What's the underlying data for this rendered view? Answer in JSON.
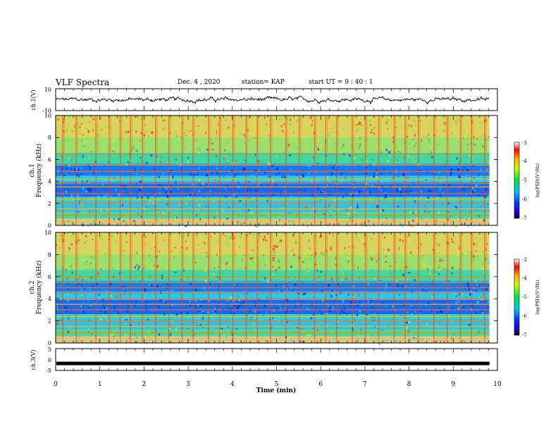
{
  "header": {
    "title": "VLF Spectra",
    "date": "Dec. 4 , 2020",
    "station": "station= KAP",
    "start_ut": "start UT = 9 : 40 : 1"
  },
  "chart_data": [
    {
      "type": "line",
      "panel": "ch1-waveform",
      "ylabel": "ch.1(V)",
      "ylim": [
        -10,
        10
      ],
      "yticks": [
        "10",
        "-10"
      ],
      "xlim": [
        0,
        10
      ],
      "x_extent_max": 9.82,
      "color": "#000000",
      "description_values": {
        "typical_range": [
          -3,
          3
        ]
      }
    },
    {
      "type": "heatmap",
      "panel": "ch1-spectrogram",
      "ylabel": "ch.1",
      "ylabel2": "Frequency (kHz)",
      "ylim": [
        0,
        10
      ],
      "yticks": [
        "0",
        "2",
        "4",
        "6",
        "8",
        "10"
      ],
      "xlim": [
        0,
        10
      ],
      "x_extent_max": 9.82,
      "colorbar": {
        "label": "log(PSD)(V²/Hz)",
        "range": [
          -7,
          -3
        ],
        "ticks": [
          "-3",
          "-4",
          "-5",
          "-6",
          "-7"
        ]
      },
      "bands_khz": [
        0.3,
        0.9,
        1.5,
        2.1,
        2.4,
        2.9,
        3.5,
        3.8,
        4.2,
        4.9,
        5.5,
        6.5
      ],
      "impulse_times_min": [
        0.15,
        0.45,
        0.9,
        1.2,
        1.45,
        1.68,
        1.95,
        2.25,
        2.55,
        2.85,
        3.1,
        3.45,
        3.7,
        4.0,
        4.3,
        4.55,
        4.85,
        5.2,
        5.5,
        5.85,
        6.1,
        6.35,
        6.7,
        7.0,
        7.3,
        7.65,
        7.9,
        8.2,
        8.55,
        8.85,
        9.15,
        9.4,
        9.7
      ]
    },
    {
      "type": "heatmap",
      "panel": "ch2-spectrogram",
      "ylabel": "ch.2",
      "ylabel2": "Frequency (kHz)",
      "ylim": [
        0,
        10
      ],
      "yticks": [
        "0",
        "2",
        "4",
        "6",
        "8",
        "10"
      ],
      "xlim": [
        0,
        10
      ],
      "x_extent_max": 9.82,
      "colorbar": {
        "label": "log(PSD)(V²/Hz)",
        "range": [
          -7,
          -3
        ],
        "ticks": [
          "-3",
          "-4",
          "-5",
          "-6",
          "-7"
        ]
      },
      "bands_khz": [
        0.3,
        0.9,
        1.5,
        2.0,
        2.4,
        3.0,
        3.5,
        4.0,
        4.6,
        5.0,
        5.5,
        6.0
      ],
      "impulse_times_min": [
        0.15,
        0.45,
        0.9,
        1.2,
        1.45,
        1.68,
        1.95,
        2.25,
        2.55,
        2.85,
        3.1,
        3.45,
        3.7,
        4.0,
        4.3,
        4.55,
        4.85,
        5.2,
        5.5,
        5.85,
        6.1,
        6.35,
        6.7,
        7.0,
        7.3,
        7.65,
        7.9,
        8.2,
        8.55,
        8.85,
        9.15,
        9.4,
        9.7
      ]
    },
    {
      "type": "line",
      "panel": "ch3-waveform",
      "ylabel": "ch.3(V)",
      "ylim": [
        -5,
        5
      ],
      "yticks": [
        "5",
        "0",
        "-5"
      ],
      "xlim": [
        0,
        10
      ],
      "x_extent_max": 9.82,
      "level": -1.8,
      "color": "#000000",
      "xlabel": "Time (min)",
      "xticks": [
        "0",
        "1",
        "2",
        "3",
        "4",
        "5",
        "6",
        "7",
        "8",
        "9",
        "10"
      ]
    }
  ]
}
